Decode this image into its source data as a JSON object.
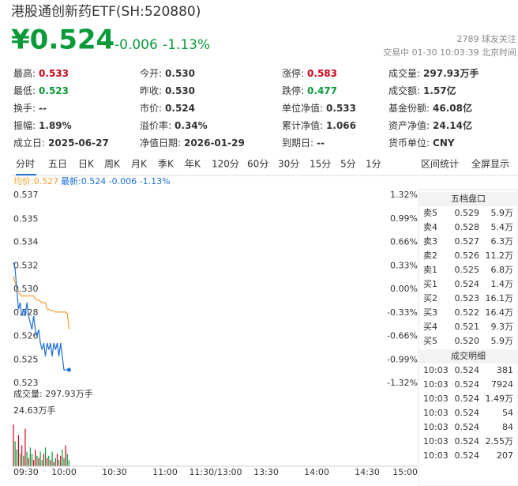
{
  "header": {
    "title": "港股通创新药ETF(SH:520880)",
    "price": "¥0.524",
    "change": "-0.006",
    "change_pct": "-1.13%",
    "followers": "2789 球友关注",
    "status": "交易中 01-30 10:03:39 北京时间"
  },
  "stats": [
    [
      {
        "label": "最高:",
        "value": "0.533",
        "color": "#d0021b"
      },
      {
        "label": "今开:",
        "value": "0.530"
      },
      {
        "label": "涨停:",
        "value": "0.583",
        "color": "#d0021b"
      },
      {
        "label": "成交量:",
        "value": "297.93万手"
      }
    ],
    [
      {
        "label": "最低:",
        "value": "0.523",
        "color": "#0a9a3a"
      },
      {
        "label": "昨收:",
        "value": "0.530"
      },
      {
        "label": "跌停:",
        "value": "0.477",
        "color": "#0a9a3a"
      },
      {
        "label": "成交额:",
        "value": "1.57亿"
      }
    ],
    [
      {
        "label": "换手:",
        "value": "--"
      },
      {
        "label": "市价:",
        "value": "0.524"
      },
      {
        "label": "单位净值:",
        "value": "0.533"
      },
      {
        "label": "基金份额:",
        "value": "46.08亿"
      }
    ],
    [
      {
        "label": "振幅:",
        "value": "1.89%"
      },
      {
        "label": "溢价率:",
        "value": "0.34%"
      },
      {
        "label": "累计净值:",
        "value": "1.066"
      },
      {
        "label": "资产净值:",
        "value": "24.14亿"
      }
    ],
    [
      {
        "label": "成立日:",
        "value": "2025-06-27"
      },
      {
        "label": "净值日期:",
        "value": "2026-01-29"
      },
      {
        "label": "到期日:",
        "value": "--"
      },
      {
        "label": "货币单位:",
        "value": "CNY"
      }
    ]
  ],
  "tabs": {
    "items": [
      "分时",
      "五日",
      "日K",
      "周K",
      "月K",
      "季K",
      "年K",
      "120分",
      "60分",
      "30分",
      "15分",
      "5分",
      "1分"
    ],
    "active": 0,
    "links": [
      "区间统计",
      "全屏显示"
    ]
  },
  "legend": {
    "avg": "均价:0.527",
    "latest": "最新:0.524 -0.006 -1.13%"
  },
  "chart_data": [
    {
      "type": "line",
      "x": [
        0,
        1,
        2,
        3,
        4,
        5,
        6,
        7,
        8,
        9,
        10,
        11,
        12,
        13,
        14,
        15,
        16,
        17,
        18,
        19,
        20,
        21,
        22,
        23,
        24,
        25,
        26,
        27,
        28,
        29,
        30,
        31,
        32,
        33
      ],
      "xlim": [
        0,
        240
      ],
      "ylim": [
        0.523,
        0.537
      ],
      "yticks": [
        {
          "value": 0.537,
          "label": "0.537"
        },
        {
          "value": 0.5352,
          "label": "0.535"
        },
        {
          "value": 0.5335,
          "label": "0.534"
        },
        {
          "value": 0.53175,
          "label": "0.532"
        },
        {
          "value": 0.53,
          "label": "0.530"
        },
        {
          "value": 0.52825,
          "label": "0.528"
        },
        {
          "value": 0.5265,
          "label": "0.526"
        },
        {
          "value": 0.52475,
          "label": "0.525"
        },
        {
          "value": 0.523,
          "label": "0.523"
        }
      ],
      "y2lim": [
        -1.32,
        1.32
      ],
      "y2ticks": [
        {
          "value": 1.32,
          "label": "1.32%"
        },
        {
          "value": 0.99,
          "label": "0.99%"
        },
        {
          "value": 0.66,
          "label": "0.66%"
        },
        {
          "value": 0.33,
          "label": "0.33%"
        },
        {
          "value": 0,
          "label": "0.00%"
        },
        {
          "value": -0.33,
          "label": "-0.33%"
        },
        {
          "value": -0.66,
          "label": "-0.66%"
        },
        {
          "value": -0.99,
          "label": "-0.99%"
        },
        {
          "value": -1.32,
          "label": "-1.32%"
        }
      ],
      "series": [
        {
          "color": "#1e6fd6",
          "values": [
            0.532,
            0.5315,
            0.53,
            0.5285,
            0.529,
            0.528,
            0.5285,
            0.528,
            0.529,
            0.528,
            0.5275,
            0.527,
            0.528,
            0.527,
            0.5265,
            0.527,
            0.526,
            0.5255,
            0.526,
            0.525,
            0.526,
            0.5255,
            0.526,
            0.525,
            0.526,
            0.5255,
            0.526,
            0.525,
            0.526,
            0.525,
            0.524,
            0.524,
            0.524,
            0.524
          ]
        },
        {
          "color": "#f0a030",
          "values": [
            0.531,
            0.5305,
            0.5302,
            0.5298,
            0.5296,
            0.5295,
            0.5295,
            0.5295,
            0.5295,
            0.5295,
            0.5295,
            0.5295,
            0.5295,
            0.5293,
            0.5292,
            0.5292,
            0.5291,
            0.529,
            0.529,
            0.529,
            0.5285,
            0.5285,
            0.5284,
            0.5284,
            0.5284,
            0.5283,
            0.5283,
            0.5283,
            0.5283,
            0.5283,
            0.5283,
            0.5283,
            0.5282,
            0.527
          ]
        }
      ]
    },
    {
      "type": "bar",
      "title": "成交量: 297.93万手",
      "x": [
        0,
        1,
        2,
        3,
        4,
        5,
        6,
        7,
        8,
        9,
        10,
        11,
        12,
        13,
        14,
        15,
        16,
        17,
        18,
        19,
        20,
        21,
        22,
        23,
        24,
        25,
        26,
        27,
        28,
        29,
        30,
        31,
        32,
        33
      ],
      "xlim": [
        0,
        240
      ],
      "xticks": [
        {
          "value": 0,
          "label": "09:30"
        },
        {
          "value": 30,
          "label": "10:00"
        },
        {
          "value": 60,
          "label": "10:30"
        },
        {
          "value": 90,
          "label": "11:00"
        },
        {
          "value": 120,
          "label": "11:30/13:00"
        },
        {
          "value": 150,
          "label": "13:30"
        },
        {
          "value": 180,
          "label": "14:00"
        },
        {
          "value": 210,
          "label": "14:30"
        },
        {
          "value": 240,
          "label": "15:00"
        }
      ],
      "ylim": [
        0,
        24.63
      ],
      "yticks": [
        {
          "value": 24.63,
          "label": "24.63万手"
        }
      ],
      "values": [
        20,
        12,
        8,
        15,
        6,
        10,
        5,
        18,
        7,
        4,
        9,
        6,
        3,
        8,
        5,
        4,
        7,
        3,
        6,
        9,
        4,
        5,
        3,
        7,
        2,
        4,
        6,
        3,
        5,
        8,
        4,
        10,
        6,
        3
      ],
      "colors": [
        "#d0021b",
        "#0a9a3a",
        "#0a9a3a",
        "#d0021b",
        "#0a9a3a",
        "#d0021b",
        "#0a9a3a",
        "#d0021b",
        "#0a9a3a",
        "#d0021b",
        "#0a9a3a",
        "#0a9a3a",
        "#d0021b",
        "#d0021b",
        "#0a9a3a",
        "#d0021b",
        "#0a9a3a",
        "#0a9a3a",
        "#d0021b",
        "#0a9a3a",
        "#d0021b",
        "#0a9a3a",
        "#d0021b",
        "#0a9a3a",
        "#d0021b",
        "#0a9a3a",
        "#d0021b",
        "#0a9a3a",
        "#d0021b",
        "#0a9a3a",
        "#0a9a3a",
        "#d0021b",
        "#0a9a3a",
        "#0a9a3a"
      ]
    }
  ],
  "order_book": {
    "title": "五档盘口",
    "price_color": "#0a9a3a",
    "rows": [
      [
        "卖5",
        "0.529",
        "5.9万"
      ],
      [
        "卖4",
        "0.528",
        "5.4万"
      ],
      [
        "卖3",
        "0.527",
        "6.3万"
      ],
      [
        "卖2",
        "0.526",
        "11.2万"
      ],
      [
        "卖1",
        "0.525",
        "6.8万"
      ],
      [
        "买1",
        "0.524",
        "1.4万"
      ],
      [
        "买2",
        "0.523",
        "16.1万"
      ],
      [
        "买3",
        "0.522",
        "16.4万"
      ],
      [
        "买4",
        "0.521",
        "9.3万"
      ],
      [
        "买5",
        "0.520",
        "5.9万"
      ]
    ]
  },
  "trades": {
    "title": "成交明细",
    "price_color": "#0a9a3a",
    "rows": [
      [
        "10:03",
        "0.524",
        "381"
      ],
      [
        "10:03",
        "0.524",
        "7924"
      ],
      [
        "10:03",
        "0.524",
        "1.49万"
      ],
      [
        "10:03",
        "0.524",
        "54"
      ],
      [
        "10:03",
        "0.524",
        "84"
      ],
      [
        "10:03",
        "0.524",
        "2.55万"
      ],
      [
        "10:03",
        "0.524",
        "207"
      ]
    ],
    "colors": [
      "#d0021b",
      "#d0021b",
      "#d0021b",
      "#0a9a3a",
      "#0a9a3a",
      "#0a9a3a",
      "#0a9a3a"
    ]
  }
}
